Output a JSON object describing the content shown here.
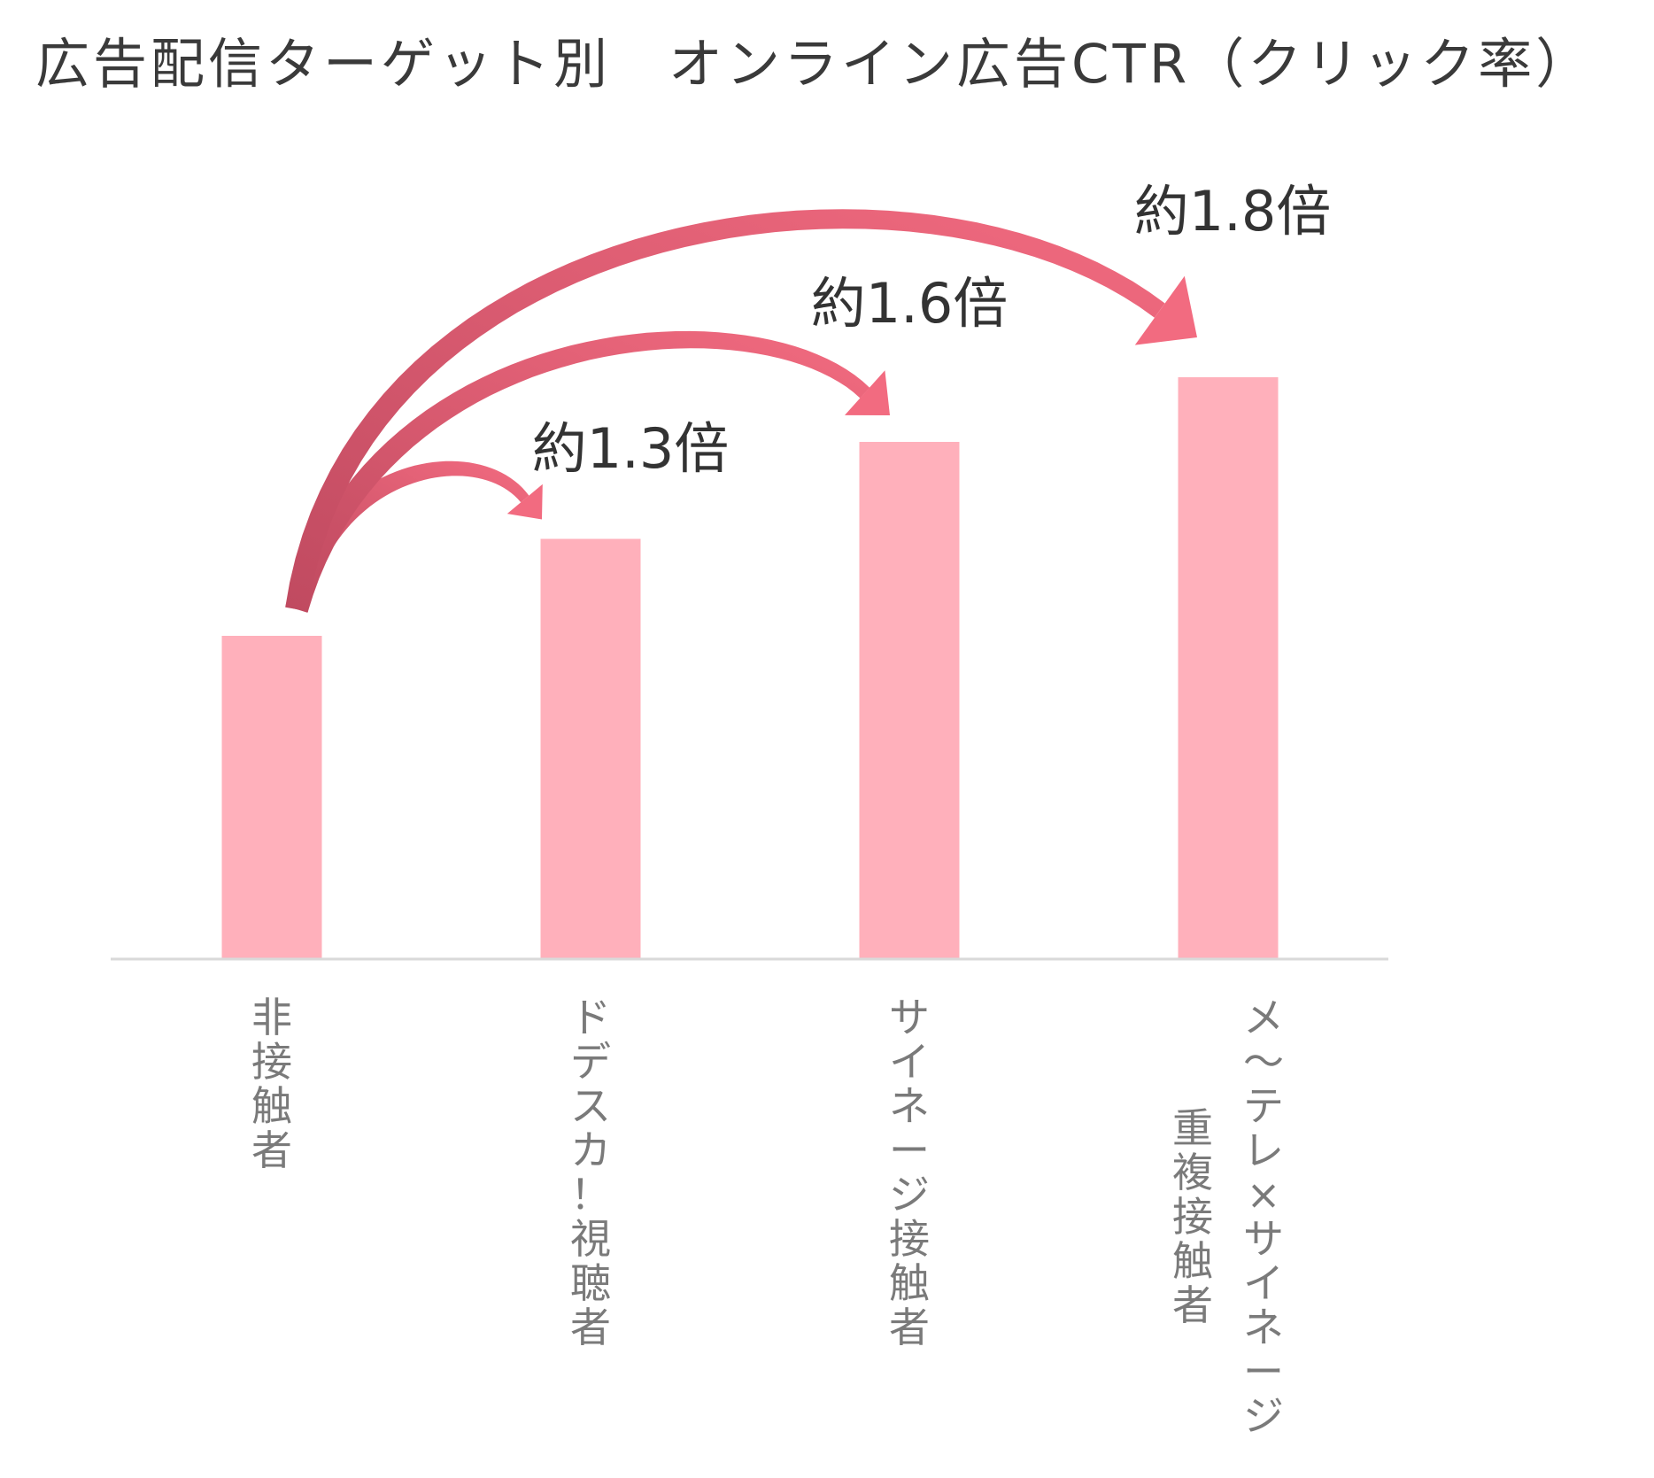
{
  "chart_data": {
    "type": "bar",
    "title": "広告配信ターゲット別　オンライン広告CTR（クリック率）",
    "categories": [
      "非接触者",
      "ドデスカ！視聴者",
      "サイネージ接触者",
      "メ〜テレ×サイネージ重複接触者"
    ],
    "category_label_lines": [
      [
        "非接触者"
      ],
      [
        "ドデスカ！視聴者"
      ],
      [
        "サイネージ接触者"
      ],
      [
        "メ〜テレ×サイネージ",
        "重複接触者"
      ]
    ],
    "values": [
      1.0,
      1.3,
      1.6,
      1.8
    ],
    "relative_to": "非接触者",
    "ylim": [
      0,
      1.8
    ],
    "grid": false,
    "annotations": [
      {
        "from": "非接触者",
        "to": "ドデスカ！視聴者",
        "label": "約1.3倍"
      },
      {
        "from": "非接触者",
        "to": "サイネージ接触者",
        "label": "約1.6倍"
      },
      {
        "from": "非接触者",
        "to": "メ〜テレ×サイネージ重複接触者",
        "label": "約1.8倍"
      }
    ],
    "colors": {
      "bar": "#ffb0bb",
      "axis": "#d9d9d9",
      "arrow_light": "#f26b80",
      "arrow_dark": "#c04a60",
      "category_text": "#7a7a7a"
    }
  }
}
